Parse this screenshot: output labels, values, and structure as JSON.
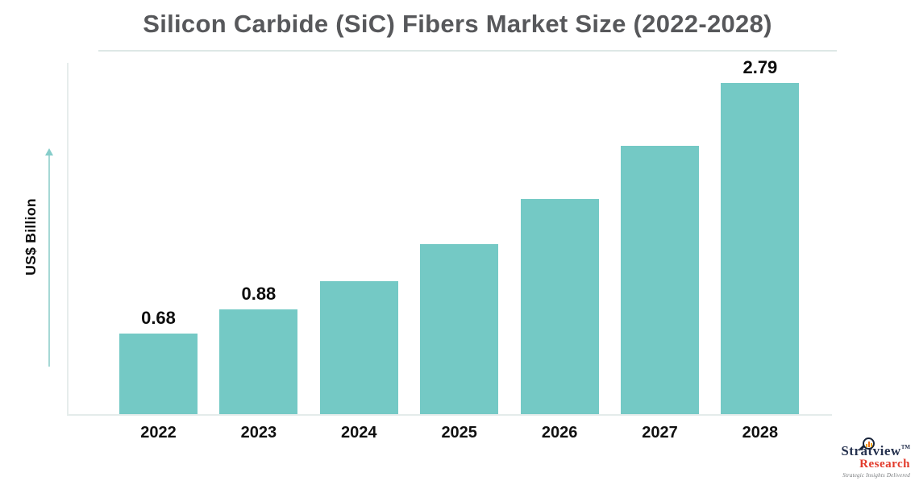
{
  "title": "Silicon Carbide (SiC) Fibers Market Size (2022-2028)",
  "chart_data": {
    "type": "bar",
    "title": "Silicon Carbide (SiC) Fibers Market Size (2022-2028)",
    "categories": [
      "2022",
      "2023",
      "2024",
      "2025",
      "2026",
      "2027",
      "2028"
    ],
    "values": [
      0.68,
      0.88,
      1.12,
      1.43,
      1.81,
      2.26,
      2.79
    ],
    "data_labels": [
      "0.68",
      "0.88",
      "",
      "",
      "",
      "",
      "2.79"
    ],
    "xlabel": "",
    "ylabel": "US$ Billion",
    "ylim": [
      0,
      2.96
    ],
    "grid": false,
    "legend": false,
    "bar_color": "#74c9c5",
    "data_label_color": "#0d0d0d",
    "axis_line_color": "#e4eceb",
    "y_arrow_color": "#a6d8d5"
  },
  "colors": {
    "background": "#ffffff",
    "title_text": "#57585b",
    "title_underline": "#dde8e6",
    "bar": "#74c9c5",
    "logo_navy": "#26324f",
    "logo_red": "#e23a2b",
    "logo_orange": "#f2a51c",
    "logo_gray": "#75787b"
  },
  "icons": {
    "y_axis_arrow": "up-arrow-icon",
    "logo_lens": "magnifier-bar-chart-icon"
  },
  "logo": {
    "name": "Stratview",
    "trademark": "TM",
    "subname": "Research",
    "tagline": "Strategic Insights Delivered"
  }
}
